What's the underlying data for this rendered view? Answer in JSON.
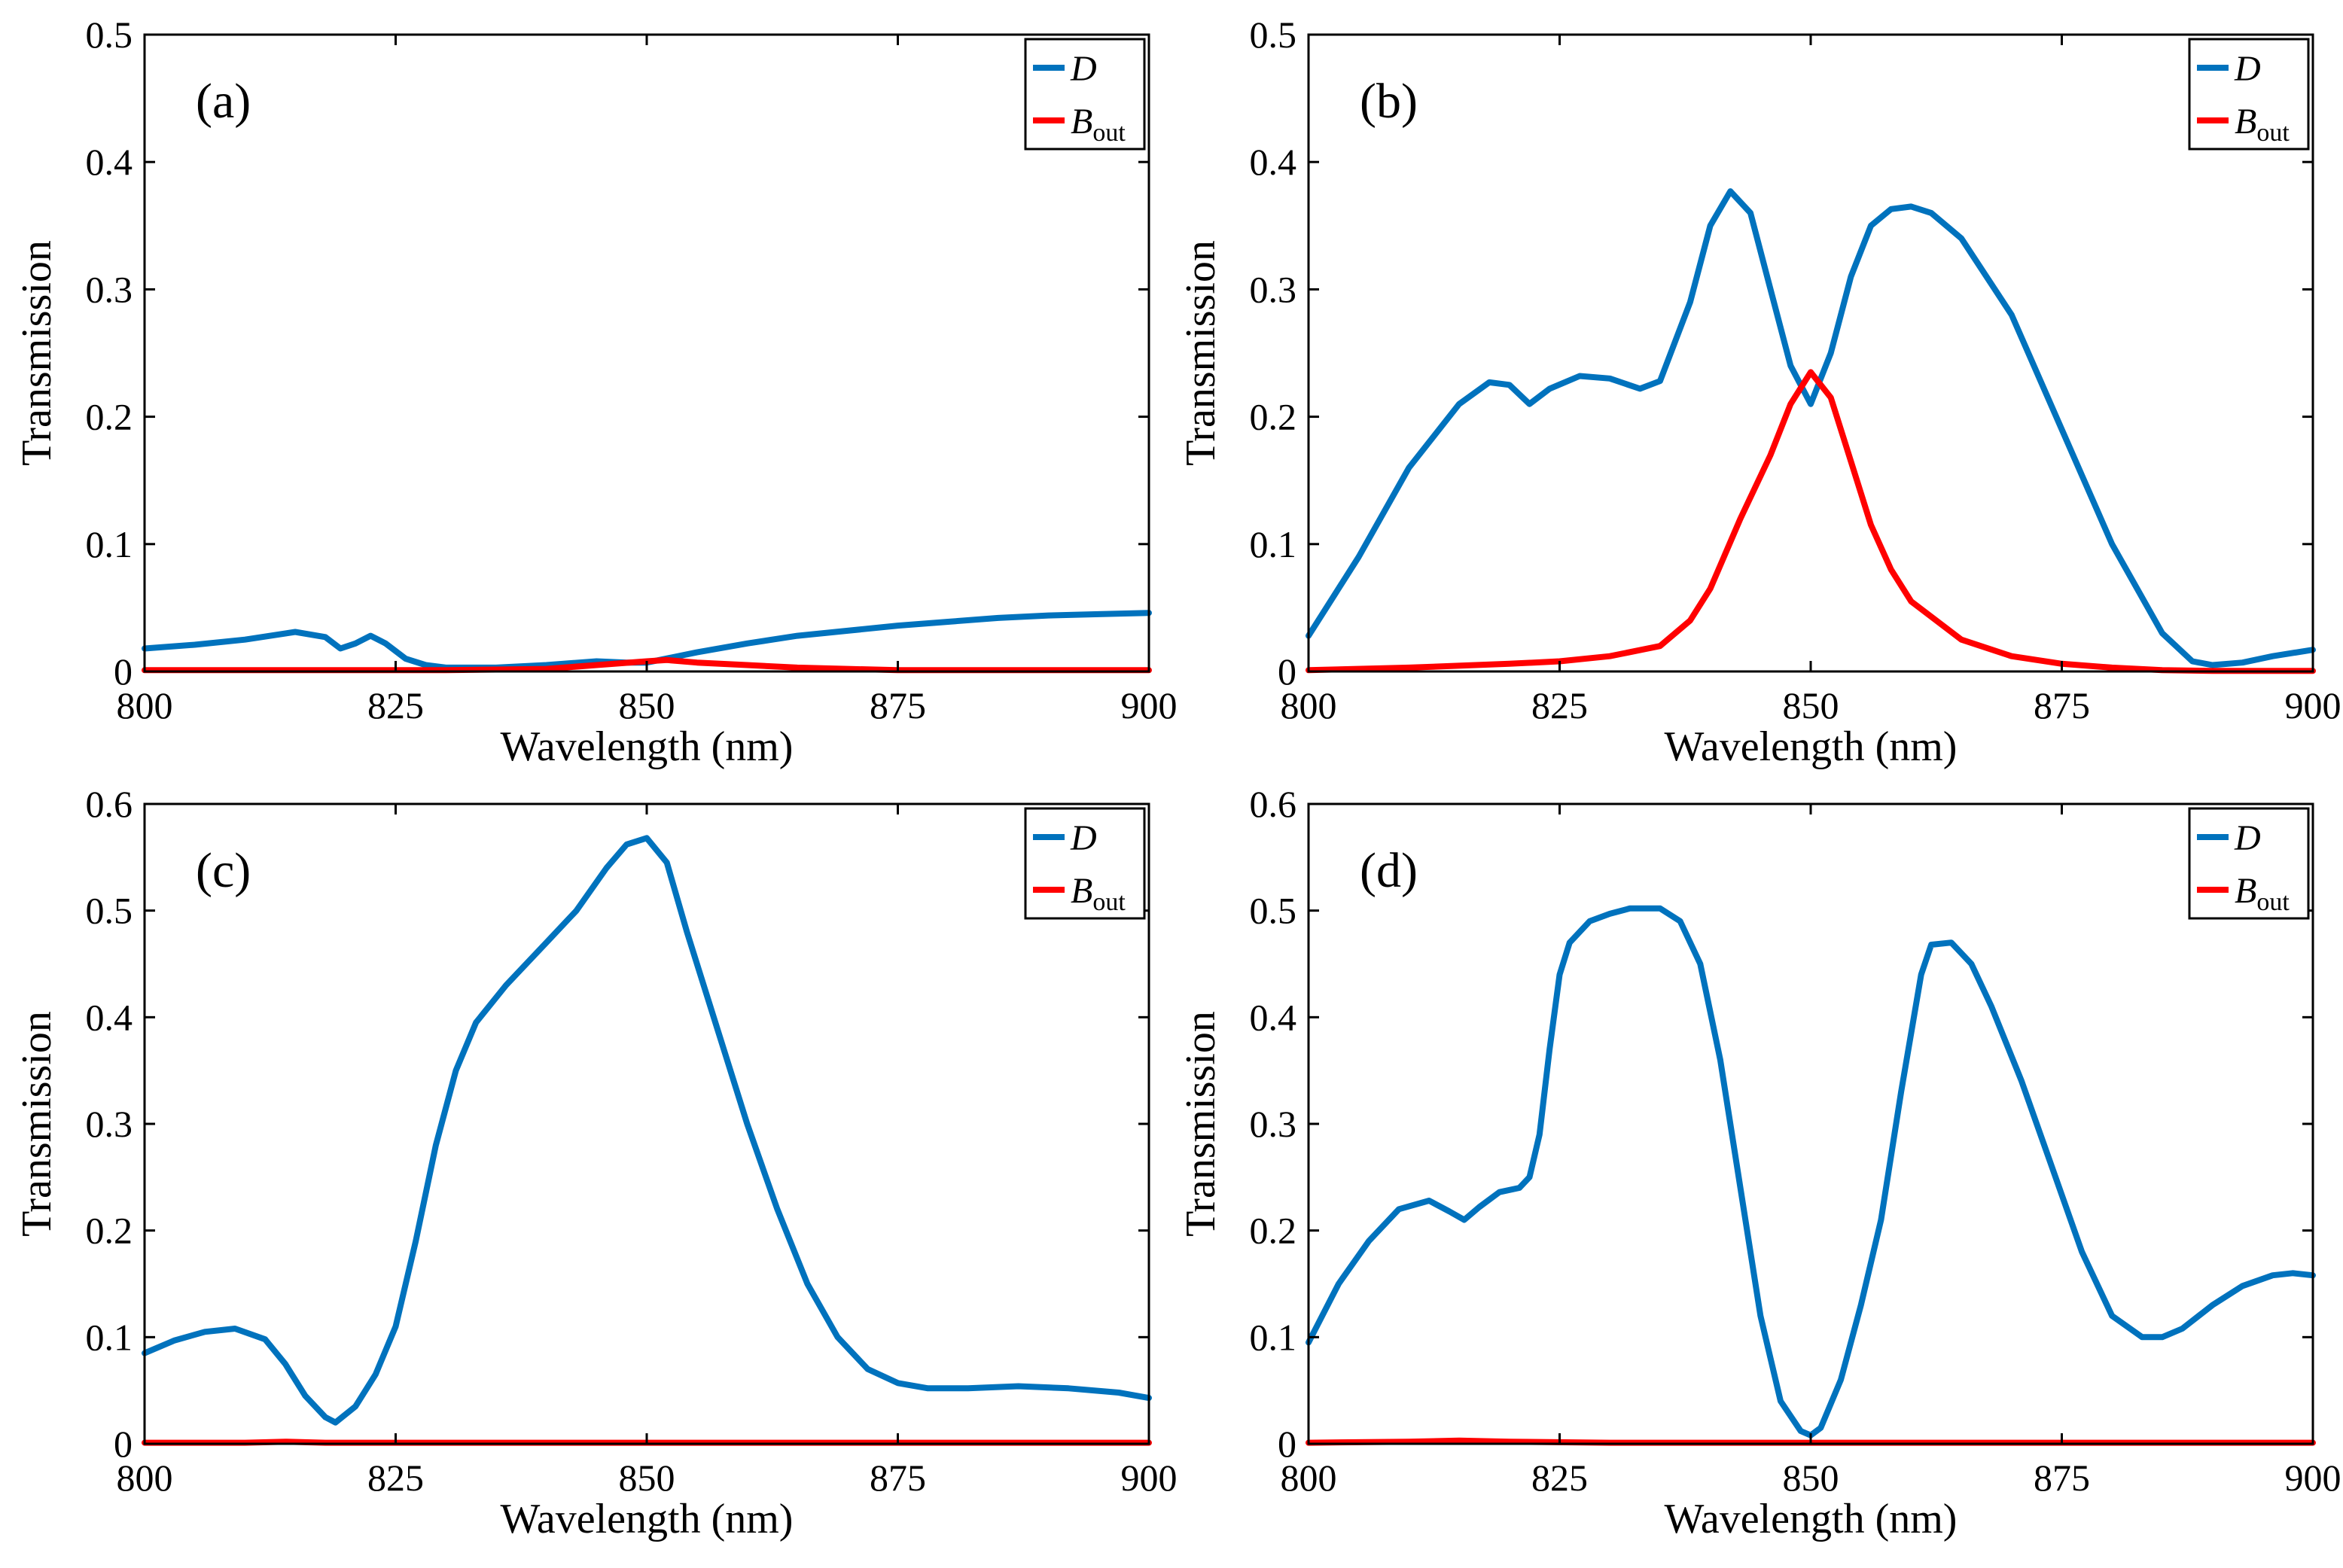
{
  "figure": {
    "description_free": true
  },
  "chart_data": [
    {
      "type": "line",
      "panel_label": "(a)",
      "xlabel": "Wavelength (nm)",
      "ylabel": "Transmission",
      "xlim": [
        800,
        900
      ],
      "ylim": [
        0,
        0.5
      ],
      "xticks": [
        800,
        825,
        850,
        875,
        900
      ],
      "yticks": [
        0,
        0.1,
        0.2,
        0.3,
        0.4,
        0.5
      ],
      "ytick_labels": [
        "0",
        "0.1",
        "0.2",
        "0.3",
        "0.4",
        "0.5"
      ],
      "legend_position": "top-right",
      "series": [
        {
          "name": "D",
          "legend_main": "D",
          "legend_sub": "",
          "color": "#0072BD",
          "x": [
            800,
            805,
            810,
            815,
            818,
            819.5,
            821,
            822.5,
            824,
            826,
            828,
            830,
            835,
            840,
            845,
            848,
            850,
            855,
            860,
            865,
            870,
            875,
            880,
            885,
            890,
            895,
            900
          ],
          "y": [
            0.018,
            0.021,
            0.025,
            0.031,
            0.027,
            0.018,
            0.022,
            0.028,
            0.022,
            0.01,
            0.005,
            0.003,
            0.003,
            0.005,
            0.008,
            0.007,
            0.007,
            0.015,
            0.022,
            0.028,
            0.032,
            0.036,
            0.039,
            0.042,
            0.044,
            0.045,
            0.046
          ]
        },
        {
          "name": "B_out",
          "legend_main": "B",
          "legend_sub": "out",
          "color": "#FF0000",
          "x": [
            800,
            810,
            820,
            830,
            835,
            840,
            845,
            850,
            852,
            855,
            860,
            865,
            870,
            875,
            880,
            890,
            900
          ],
          "y": [
            0.001,
            0.001,
            0.001,
            0.001,
            0.0015,
            0.002,
            0.005,
            0.008,
            0.009,
            0.007,
            0.005,
            0.003,
            0.002,
            0.001,
            0.001,
            0.001,
            0.001
          ]
        }
      ]
    },
    {
      "type": "line",
      "panel_label": "(b)",
      "xlabel": "Wavelength (nm)",
      "ylabel": "Transmission",
      "xlim": [
        800,
        900
      ],
      "ylim": [
        0,
        0.5
      ],
      "xticks": [
        800,
        825,
        850,
        875,
        900
      ],
      "yticks": [
        0,
        0.1,
        0.2,
        0.3,
        0.4,
        0.5
      ],
      "ytick_labels": [
        "0",
        "0.1",
        "0.2",
        "0.3",
        "0.4",
        "0.5"
      ],
      "legend_position": "top-right",
      "series": [
        {
          "name": "D",
          "legend_main": "D",
          "legend_sub": "",
          "color": "#0072BD",
          "x": [
            800,
            805,
            810,
            815,
            818,
            820,
            822,
            824,
            827,
            830,
            833,
            835,
            838,
            840,
            842,
            844,
            846,
            848,
            850,
            852,
            854,
            856,
            858,
            860,
            862,
            865,
            870,
            875,
            880,
            885,
            888,
            890,
            893,
            896,
            900
          ],
          "y": [
            0.028,
            0.09,
            0.16,
            0.21,
            0.227,
            0.225,
            0.21,
            0.222,
            0.232,
            0.23,
            0.222,
            0.228,
            0.29,
            0.35,
            0.377,
            0.36,
            0.3,
            0.24,
            0.21,
            0.25,
            0.31,
            0.35,
            0.363,
            0.365,
            0.36,
            0.34,
            0.28,
            0.19,
            0.1,
            0.03,
            0.008,
            0.005,
            0.007,
            0.012,
            0.017
          ]
        },
        {
          "name": "B_out",
          "legend_main": "B",
          "legend_sub": "out",
          "color": "#FF0000",
          "x": [
            800,
            810,
            820,
            825,
            830,
            835,
            838,
            840,
            843,
            846,
            848,
            850,
            852,
            854,
            856,
            858,
            860,
            865,
            870,
            875,
            880,
            885,
            890,
            900
          ],
          "y": [
            0.001,
            0.003,
            0.006,
            0.008,
            0.012,
            0.02,
            0.04,
            0.065,
            0.12,
            0.17,
            0.21,
            0.235,
            0.215,
            0.165,
            0.115,
            0.08,
            0.055,
            0.025,
            0.012,
            0.006,
            0.003,
            0.001,
            0.0005,
            0.0005
          ]
        }
      ]
    },
    {
      "type": "line",
      "panel_label": "(c)",
      "xlabel": "Wavelength (nm)",
      "ylabel": "Transmission",
      "xlim": [
        800,
        900
      ],
      "ylim": [
        0,
        0.6
      ],
      "xticks": [
        800,
        825,
        850,
        875,
        900
      ],
      "yticks": [
        0,
        0.1,
        0.2,
        0.3,
        0.4,
        0.5,
        0.6
      ],
      "ytick_labels": [
        "0",
        "0.1",
        "0.2",
        "0.3",
        "0.4",
        "0.5",
        "0.6"
      ],
      "legend_position": "top-right",
      "series": [
        {
          "name": "D",
          "legend_main": "D",
          "legend_sub": "",
          "color": "#0072BD",
          "x": [
            800,
            803,
            806,
            809,
            812,
            814,
            816,
            818,
            819,
            821,
            823,
            825,
            827,
            829,
            831,
            833,
            836,
            840,
            843,
            846,
            848,
            850,
            852,
            854,
            857,
            860,
            863,
            866,
            869,
            872,
            875,
            878,
            882,
            887,
            892,
            897,
            900
          ],
          "y": [
            0.085,
            0.097,
            0.105,
            0.108,
            0.098,
            0.075,
            0.045,
            0.025,
            0.02,
            0.035,
            0.065,
            0.11,
            0.19,
            0.28,
            0.35,
            0.395,
            0.43,
            0.47,
            0.5,
            0.54,
            0.562,
            0.568,
            0.545,
            0.48,
            0.39,
            0.3,
            0.22,
            0.15,
            0.1,
            0.07,
            0.057,
            0.052,
            0.052,
            0.054,
            0.052,
            0.048,
            0.043
          ]
        },
        {
          "name": "B_out",
          "legend_main": "B",
          "legend_sub": "out",
          "color": "#FF0000",
          "x": [
            800,
            810,
            814,
            818,
            830,
            850,
            870,
            890,
            900
          ],
          "y": [
            0.001,
            0.001,
            0.002,
            0.001,
            0.001,
            0.001,
            0.001,
            0.001,
            0.001
          ]
        }
      ]
    },
    {
      "type": "line",
      "panel_label": "(d)",
      "xlabel": "Wavelength (nm)",
      "ylabel": "Transmission",
      "xlim": [
        800,
        900
      ],
      "ylim": [
        0,
        0.6
      ],
      "xticks": [
        800,
        825,
        850,
        875,
        900
      ],
      "yticks": [
        0,
        0.1,
        0.2,
        0.3,
        0.4,
        0.5,
        0.6
      ],
      "ytick_labels": [
        "0",
        "0.1",
        "0.2",
        "0.3",
        "0.4",
        "0.5",
        "0.6"
      ],
      "legend_position": "top-right",
      "series": [
        {
          "name": "D",
          "legend_main": "D",
          "legend_sub": "",
          "color": "#0072BD",
          "x": [
            800,
            803,
            806,
            809,
            812,
            814,
            815.5,
            817,
            819,
            821,
            822,
            823,
            824,
            825,
            826,
            828,
            830,
            832,
            835,
            837,
            839,
            841,
            843,
            845,
            847,
            849,
            850,
            851,
            853,
            855,
            857,
            859,
            861,
            862,
            864,
            866,
            868,
            871,
            874,
            877,
            880,
            883,
            885,
            887,
            890,
            893,
            896,
            898,
            900
          ],
          "y": [
            0.095,
            0.15,
            0.19,
            0.22,
            0.228,
            0.218,
            0.21,
            0.222,
            0.236,
            0.24,
            0.25,
            0.29,
            0.37,
            0.44,
            0.47,
            0.49,
            0.497,
            0.502,
            0.502,
            0.49,
            0.45,
            0.36,
            0.24,
            0.12,
            0.04,
            0.012,
            0.008,
            0.015,
            0.06,
            0.13,
            0.21,
            0.33,
            0.44,
            0.468,
            0.47,
            0.45,
            0.41,
            0.34,
            0.26,
            0.18,
            0.12,
            0.1,
            0.1,
            0.108,
            0.13,
            0.148,
            0.158,
            0.16,
            0.158
          ]
        },
        {
          "name": "B_out",
          "legend_main": "B",
          "legend_sub": "out",
          "color": "#FF0000",
          "x": [
            800,
            810,
            815,
            820,
            830,
            850,
            870,
            890,
            900
          ],
          "y": [
            0.001,
            0.002,
            0.003,
            0.002,
            0.001,
            0.001,
            0.001,
            0.001,
            0.001
          ]
        }
      ]
    }
  ]
}
